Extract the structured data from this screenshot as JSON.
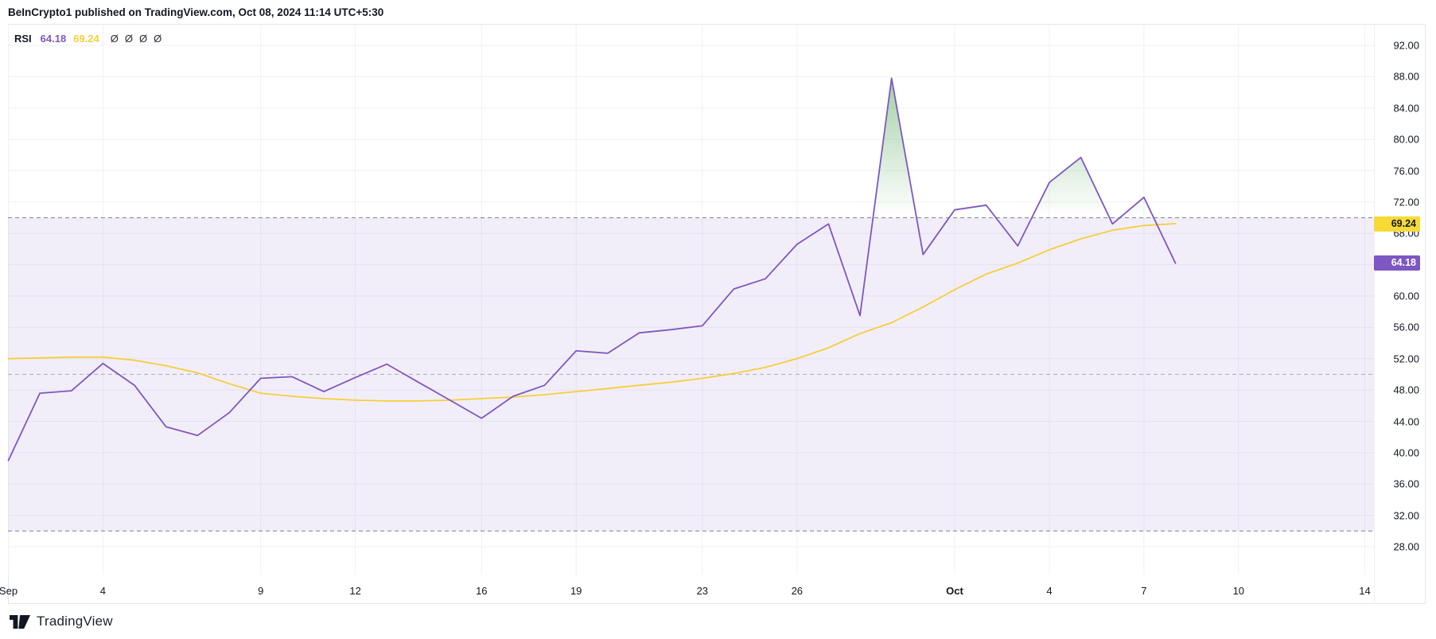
{
  "header": {
    "attribution": "BeInCrypto1 published on TradingView.com, Oct 08, 2024 11:14 UTC+5:30"
  },
  "legend": {
    "indicator": "RSI",
    "rsi_value": "64.18",
    "ma_value": "69.24",
    "placeholders": [
      "Ø",
      "Ø",
      "Ø",
      "Ø"
    ]
  },
  "price_scale": {
    "tick_labels": [
      "92.00",
      "88.00",
      "84.00",
      "80.00",
      "76.00",
      "72.00",
      "68.00",
      "64.00",
      "60.00",
      "56.00",
      "52.00",
      "48.00",
      "44.00",
      "40.00",
      "36.00",
      "32.00",
      "28.00"
    ],
    "ma_badge": {
      "text": "69.24",
      "value": 69.24,
      "bg": "#F7DA36",
      "fg": "#131722"
    },
    "rsi_badge": {
      "text": "64.18",
      "value": 64.18,
      "bg": "#7E57C2",
      "fg": "#ffffff"
    }
  },
  "time_scale": {
    "labels": [
      {
        "text": "Sep",
        "day": 0,
        "bold": false
      },
      {
        "text": "4",
        "day": 3,
        "bold": false
      },
      {
        "text": "9",
        "day": 8,
        "bold": false
      },
      {
        "text": "12",
        "day": 11,
        "bold": false
      },
      {
        "text": "16",
        "day": 15,
        "bold": false
      },
      {
        "text": "19",
        "day": 18,
        "bold": false
      },
      {
        "text": "23",
        "day": 22,
        "bold": false
      },
      {
        "text": "26",
        "day": 25,
        "bold": false
      },
      {
        "text": "Oct",
        "day": 30,
        "bold": true
      },
      {
        "text": "4",
        "day": 33,
        "bold": false
      },
      {
        "text": "7",
        "day": 36,
        "bold": false
      },
      {
        "text": "10",
        "day": 39,
        "bold": false
      },
      {
        "text": "14",
        "day": 43,
        "bold": false
      }
    ]
  },
  "footer": {
    "brand": "TradingView"
  },
  "chart_data": {
    "type": "line",
    "title": "RSI",
    "x_dates": [
      "Sep 1",
      "Sep 2",
      "Sep 3",
      "Sep 4",
      "Sep 5",
      "Sep 6",
      "Sep 7",
      "Sep 8",
      "Sep 9",
      "Sep 10",
      "Sep 11",
      "Sep 12",
      "Sep 13",
      "Sep 14",
      "Sep 15",
      "Sep 16",
      "Sep 17",
      "Sep 18",
      "Sep 19",
      "Sep 20",
      "Sep 21",
      "Sep 22",
      "Sep 23",
      "Sep 24",
      "Sep 25",
      "Sep 26",
      "Sep 27",
      "Sep 28",
      "Sep 29",
      "Sep 30",
      "Oct 1",
      "Oct 2",
      "Oct 3",
      "Oct 4",
      "Oct 5",
      "Oct 6",
      "Oct 7",
      "Oct 8"
    ],
    "series": [
      {
        "name": "RSI",
        "color": "#7E57C2",
        "values": [
          39.0,
          47.6,
          47.9,
          51.4,
          48.6,
          43.3,
          42.2,
          45.1,
          49.5,
          49.7,
          47.8,
          49.6,
          51.3,
          49.0,
          46.7,
          44.4,
          47.2,
          48.6,
          53.0,
          52.7,
          55.3,
          55.7,
          56.2,
          60.9,
          62.2,
          66.6,
          69.2,
          57.5,
          87.8,
          65.3,
          71.0,
          71.6,
          66.4,
          74.5,
          77.7,
          69.2,
          72.6,
          64.18
        ]
      },
      {
        "name": "RSI MA",
        "color": "#F6CE3B",
        "values": [
          52.0,
          52.1,
          52.2,
          52.2,
          51.8,
          51.1,
          50.2,
          48.8,
          47.6,
          47.2,
          46.9,
          46.7,
          46.6,
          46.6,
          46.7,
          46.9,
          47.1,
          47.4,
          47.8,
          48.2,
          48.6,
          49.0,
          49.5,
          50.1,
          50.9,
          52.0,
          53.4,
          55.2,
          56.6,
          58.6,
          60.8,
          62.8,
          64.2,
          65.9,
          67.3,
          68.4,
          69.0,
          69.24
        ]
      }
    ],
    "last_values": {
      "rsi": 64.18,
      "ma": 69.24
    },
    "bands": {
      "upper": 70,
      "middle": 50,
      "lower": 30
    },
    "band_fill": "rgba(126,87,194,0.10)",
    "overbought_fill": "#43A047",
    "y_ticks": [
      92,
      88,
      84,
      80,
      76,
      72,
      68,
      64,
      60,
      56,
      52,
      48,
      44,
      40,
      36,
      32,
      28
    ],
    "ylim": [
      25.5,
      95.5
    ],
    "grid": true,
    "legend_position": "top-left",
    "y_axis_side": "right"
  }
}
